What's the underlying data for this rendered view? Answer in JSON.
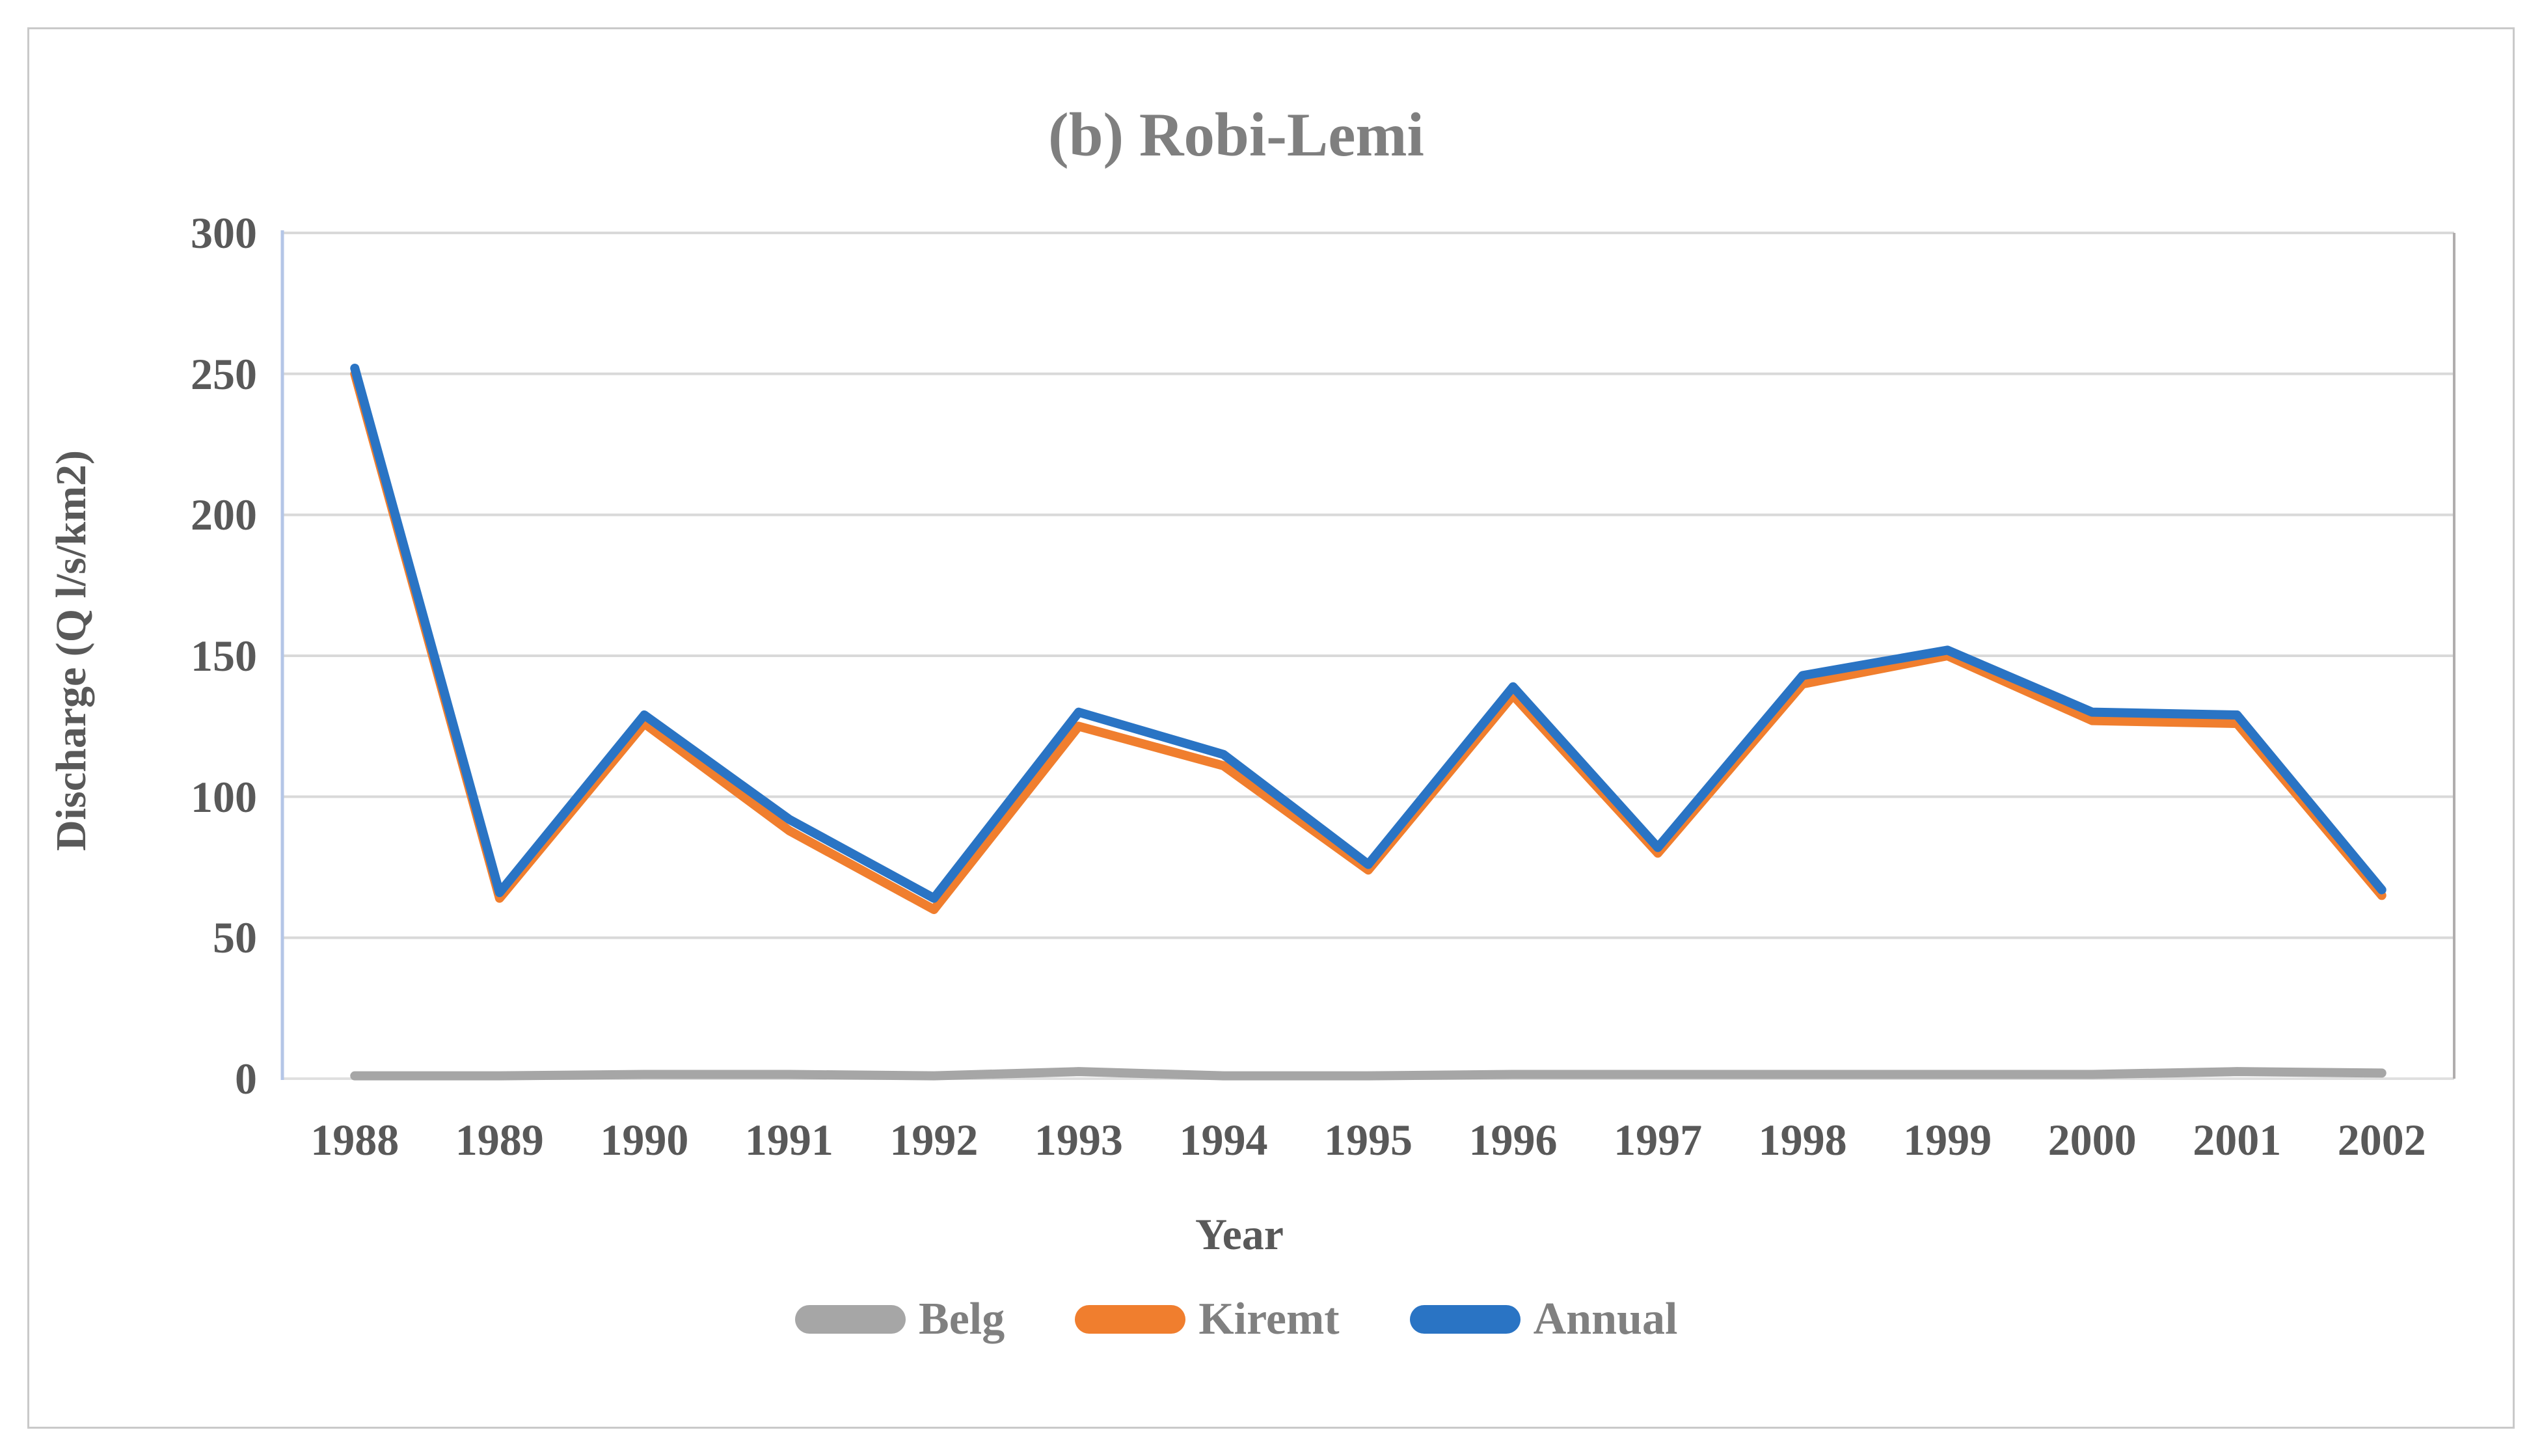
{
  "figure": {
    "title": "(b) Robi-Lemi"
  },
  "axes": {
    "y_title": "Discharge (Q l/s/km2)",
    "x_title": "Year"
  },
  "chart_data": {
    "type": "line",
    "title": "(b) Robi-Lemi",
    "xlabel": "Year",
    "ylabel": "Discharge (Q l/s/km2)",
    "categories": [
      "1988",
      "1989",
      "1990",
      "1991",
      "1992",
      "1993",
      "1994",
      "1995",
      "1996",
      "1997",
      "1998",
      "1999",
      "2000",
      "2001",
      "2002"
    ],
    "y_ticks": [
      0,
      50,
      100,
      150,
      200,
      250,
      300
    ],
    "ylim": [
      0,
      300
    ],
    "grid": "horizontal",
    "legend_position": "bottom",
    "series": [
      {
        "name": "Belg",
        "color": "#A6A6A6",
        "values": [
          1,
          1,
          1.5,
          1.5,
          1,
          2.5,
          1,
          1,
          1.5,
          1.5,
          1.5,
          1.5,
          1.5,
          2.5,
          2
        ]
      },
      {
        "name": "Kiremt",
        "color": "#F07E2E",
        "values": [
          250,
          64,
          126,
          88,
          60,
          125,
          111,
          74,
          136,
          80,
          140,
          150,
          127,
          126,
          65
        ]
      },
      {
        "name": "Annual",
        "color": "#2A74C4",
        "values": [
          252,
          66,
          129,
          92,
          64,
          130,
          115,
          76,
          139,
          82,
          143,
          152,
          130,
          129,
          67
        ]
      }
    ]
  },
  "colors": {
    "gridline": "#D9D9D9",
    "baseline": "#E0E0E0",
    "y_axis_line": "#B4C6E7",
    "plot_right_border": "#B0ADAD",
    "frame_border": "#C9C9C9",
    "title_text": "#7F7F7F",
    "tick_text": "#595959",
    "legend_text": "#808080"
  }
}
